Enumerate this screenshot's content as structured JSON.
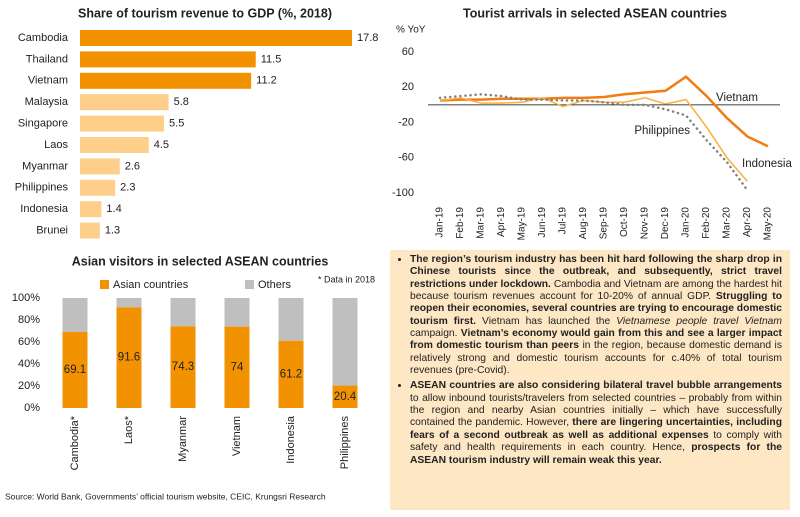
{
  "chart_data": [
    {
      "type": "bar",
      "orientation": "horizontal",
      "title": "Share of tourism revenue to GDP (%, 2018)",
      "categories": [
        "Cambodia",
        "Thailand",
        "Vietnam",
        "Malaysia",
        "Singapore",
        "Laos",
        "Myanmar",
        "Philippines",
        "Indonesia",
        "Brunei"
      ],
      "values": [
        17.8,
        11.5,
        11.2,
        5.8,
        5.5,
        4.5,
        2.6,
        2.3,
        1.4,
        1.3
      ],
      "colors": [
        "#f39200",
        "#f39200",
        "#f39200",
        "#fdcf8a",
        "#fdcf8a",
        "#fdcf8a",
        "#fdcf8a",
        "#fdcf8a",
        "#fdcf8a",
        "#fdcf8a"
      ]
    },
    {
      "type": "line",
      "title": "Tourist arrivals in selected ASEAN countries",
      "y_label": "% YoY",
      "categories": [
        "Jan-19",
        "Feb-19",
        "Mar-19",
        "Apr-19",
        "May-19",
        "Jun-19",
        "Jul-19",
        "Aug-19",
        "Sep-19",
        "Oct-19",
        "Nov-19",
        "Dec-19",
        "Jan-20",
        "Feb-20",
        "Mar-20",
        "Apr-20",
        "May-20"
      ],
      "series": [
        {
          "name": "Vietnam",
          "color": "#f07c14",
          "width": 2.5,
          "values": [
            5,
            6,
            6,
            7,
            7,
            7,
            8,
            8,
            9,
            12,
            14,
            16,
            32,
            10,
            -15,
            -36,
            -47
          ]
        },
        {
          "name": "Indonesia",
          "color": "#f8b13c",
          "width": 1.5,
          "values": [
            5,
            8,
            2,
            2,
            3,
            8,
            -2,
            5,
            3,
            3,
            8,
            1,
            6,
            -25,
            -60,
            -87,
            null
          ]
        },
        {
          "name": "Philippines",
          "color": "#7f7f7f",
          "width": 2.5,
          "dotted": true,
          "values": [
            8,
            10,
            12,
            10,
            6,
            6,
            5,
            5,
            3,
            0,
            0,
            -5,
            -12,
            -40,
            -65,
            -97,
            null
          ]
        }
      ],
      "ylim": [
        -100,
        60
      ],
      "yticks": [
        60,
        20,
        -20,
        -60,
        -100
      ]
    },
    {
      "type": "stacked_bar",
      "title": "Asian visitors in selected ASEAN countries",
      "note": "* Data in 2018",
      "categories": [
        "Cambodia*",
        "Laos*",
        "Myanmar",
        "Vietnam",
        "Indonesia",
        "Philippines"
      ],
      "series": [
        {
          "name": "Asian countries",
          "color": "#f39200",
          "values": [
            69.1,
            91.6,
            74.3,
            74,
            61.2,
            20.4
          ],
          "labeled": true
        },
        {
          "name": "Others",
          "color": "#bfbfbf",
          "values": [
            30.9,
            8.4,
            25.7,
            26,
            38.8,
            79.6
          ]
        }
      ],
      "ylim": [
        0,
        100
      ],
      "yticks": [
        {
          "value": 0,
          "label": "0%"
        },
        {
          "value": 20,
          "label": "20%"
        },
        {
          "value": 40,
          "label": "40%"
        },
        {
          "value": 60,
          "label": "60%"
        },
        {
          "value": 80,
          "label": "80%"
        },
        {
          "value": 100,
          "label": "100%"
        }
      ]
    }
  ],
  "notes": [
    [
      {
        "text": "The region’s tourism industry has been hit hard following the sharp drop in Chinese tourists since the outbreak, and subsequently, strict travel restrictions under lockdown.",
        "bold": true
      },
      {
        "text": " Cambodia and Vietnam are among the hardest hit because tourism revenues account for 10-20% of annual GDP. "
      },
      {
        "text": "Struggling to reopen their economies, several countries are trying to encourage domestic tourism first.",
        "bold": true
      },
      {
        "text": " Vietnam has launched the "
      },
      {
        "text": "Vietnamese people travel Vietnam",
        "italic": true
      },
      {
        "text": " campaign. "
      },
      {
        "text": "Vietnam’s economy would gain from this and see a larger impact from domestic tourism than peers",
        "bold": true
      },
      {
        "text": " in the region, because domestic demand is relatively strong and domestic tourism accounts for c.40% of total tourism revenues (pre-Covid)."
      }
    ],
    [
      {
        "text": "ASEAN countries are also considering bilateral travel bubble arrangements",
        "bold": true
      },
      {
        "text": " to allow inbound tourists/travelers from selected countries – probably from within the region and nearby Asian countries initially – which have successfully contained the pandemic. However, "
      },
      {
        "text": "there are lingering uncertainties, including fears of a second outbreak as well as additional expenses",
        "bold": true
      },
      {
        "text": " to comply with safety and health requirements in each country. Hence, "
      },
      {
        "text": "prospects for the ASEAN tourism industry will remain weak this year.",
        "bold": true
      }
    ]
  ],
  "source": "Source: World Bank, Governments’ official tourism website, CEIC, Krungsri Research"
}
